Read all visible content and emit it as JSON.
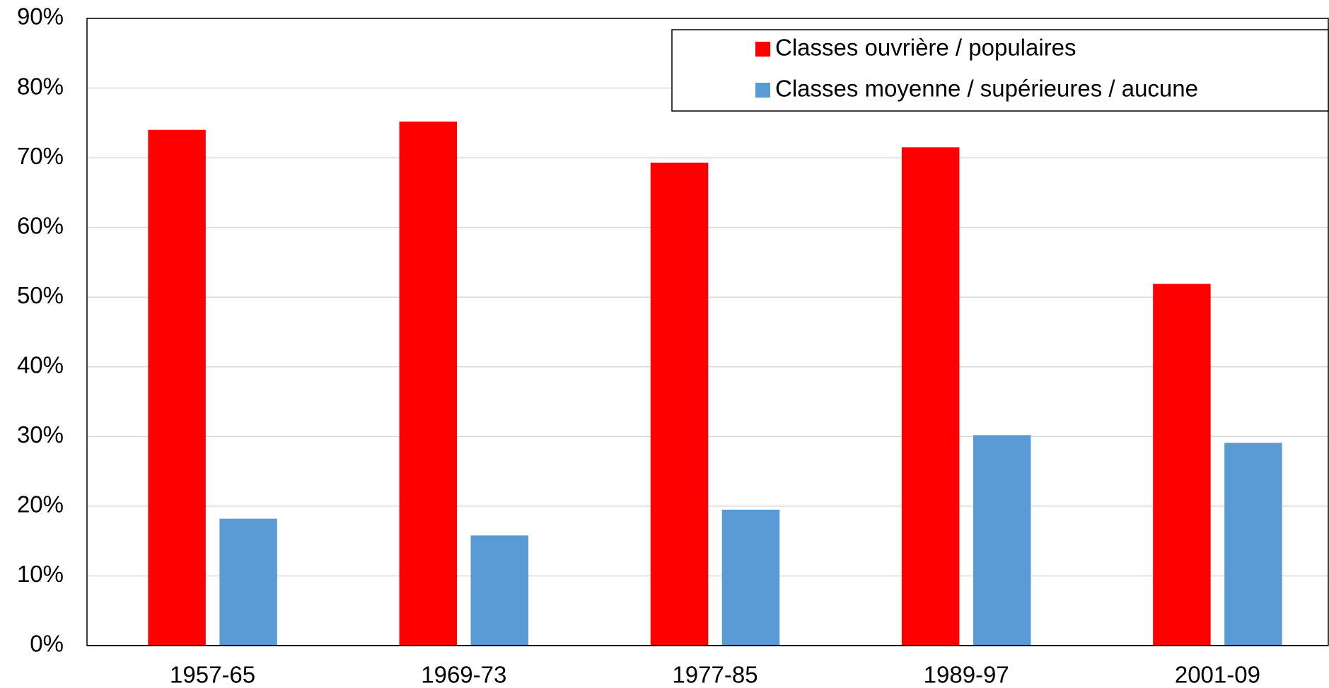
{
  "chart_data": {
    "type": "bar",
    "categories": [
      "1957-65",
      "1969-73",
      "1977-85",
      "1989-97",
      "2001-09"
    ],
    "series": [
      {
        "name": "Classes ouvrière / populaires",
        "color": "#ff0000",
        "values": [
          74.0,
          75.2,
          69.3,
          71.5,
          51.9
        ]
      },
      {
        "name": "Classes moyenne / supérieures / aucune",
        "color": "#5b9bd5",
        "values": [
          18.2,
          15.8,
          19.5,
          30.2,
          29.1
        ]
      }
    ],
    "ylim": [
      0,
      90
    ],
    "yticks": [
      {
        "value": 0,
        "label": "0%"
      },
      {
        "value": 10,
        "label": "10%"
      },
      {
        "value": 20,
        "label": "20%"
      },
      {
        "value": 30,
        "label": "30%"
      },
      {
        "value": 40,
        "label": "40%"
      },
      {
        "value": 50,
        "label": "50%"
      },
      {
        "value": 60,
        "label": "60%"
      },
      {
        "value": 70,
        "label": "70%"
      },
      {
        "value": 80,
        "label": "80%"
      },
      {
        "value": 90,
        "label": "90%"
      }
    ],
    "grid": true,
    "legend": "upper right"
  }
}
